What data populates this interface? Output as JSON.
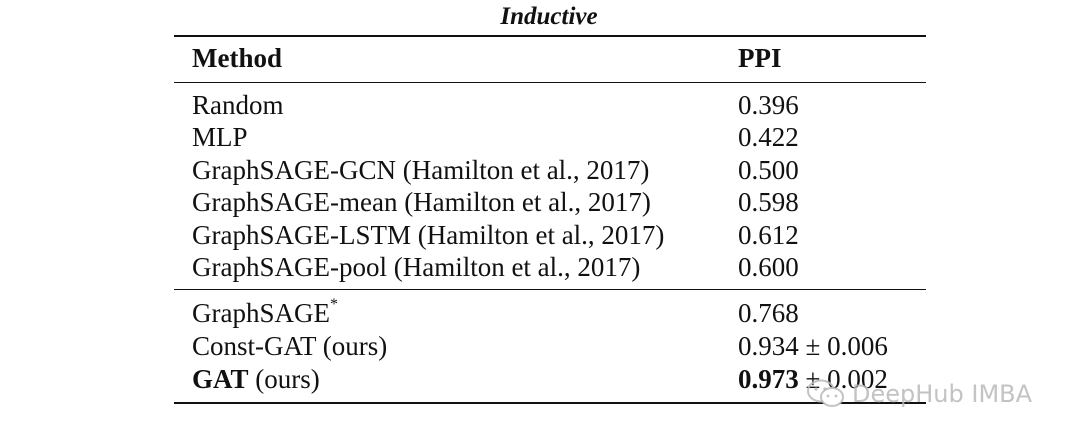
{
  "table": {
    "caption": "Inductive",
    "header": {
      "method": "Method",
      "ppi": "PPI"
    },
    "group1": [
      {
        "method": "Random",
        "ppi": "0.396"
      },
      {
        "method": "MLP",
        "ppi": "0.422"
      },
      {
        "method": "GraphSAGE-GCN (Hamilton et al., 2017)",
        "ppi": "0.500"
      },
      {
        "method": "GraphSAGE-mean (Hamilton et al., 2017)",
        "ppi": "0.598"
      },
      {
        "method": "GraphSAGE-LSTM (Hamilton et al., 2017)",
        "ppi": "0.612"
      },
      {
        "method": "GraphSAGE-pool (Hamilton et al., 2017)",
        "ppi": "0.600"
      }
    ],
    "group2": [
      {
        "method": "GraphSAGE",
        "method_sup": "*",
        "ppi": "0.768"
      },
      {
        "method": "Const-GAT (ours)",
        "ppi": "0.934",
        "ppi_err": "± 0.006"
      },
      {
        "method_bold": "GAT",
        "method": "(ours)",
        "ppi_bold": "0.973",
        "ppi_err": "± 0.002"
      }
    ]
  },
  "watermark": {
    "text": "DeepHub IMBA",
    "icon": "wechat-icon"
  }
}
